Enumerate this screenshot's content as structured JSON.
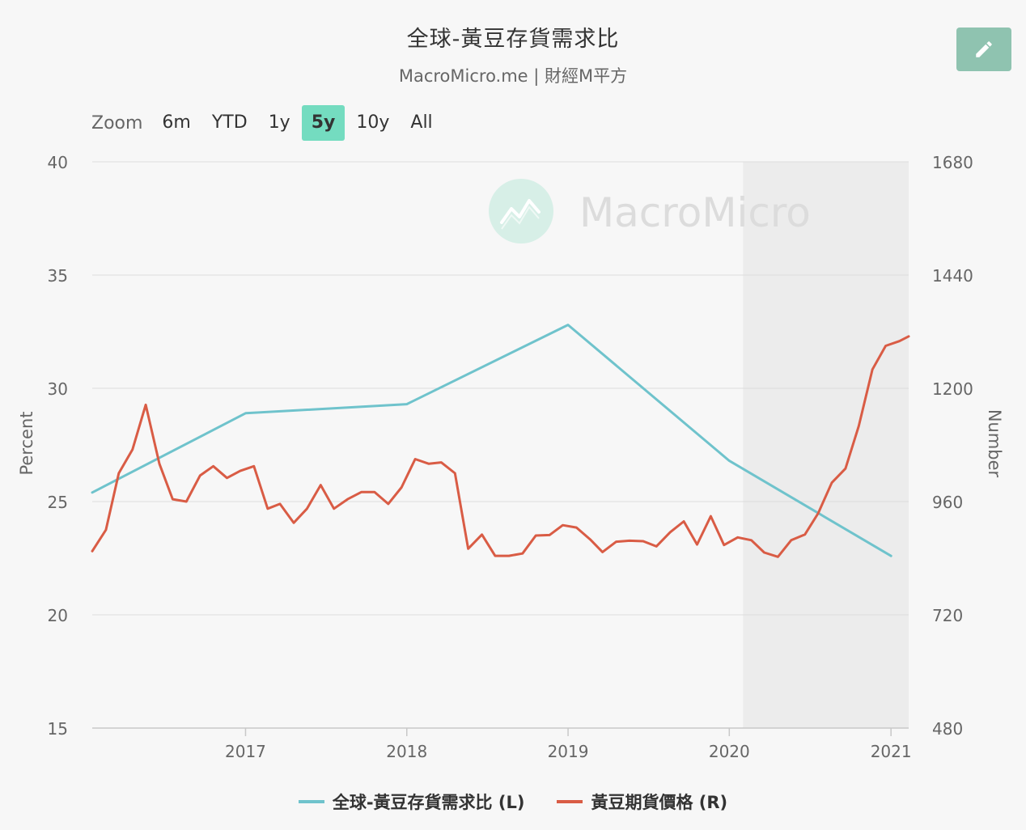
{
  "header": {
    "title": "全球-黃豆存貨需求比",
    "subtitle": "MacroMicro.me | 財經M平方"
  },
  "toolbar": {
    "edit_icon": "pencil-icon"
  },
  "zoom": {
    "label": "Zoom",
    "options": [
      "6m",
      "YTD",
      "1y",
      "5y",
      "10y",
      "All"
    ],
    "active": "5y"
  },
  "watermark": "MacroMicro",
  "colors": {
    "accent": "#74dcc0",
    "series_left": "#6fc3cc",
    "series_right": "#d95c45",
    "shade": "#ececec"
  },
  "chart_data": {
    "type": "line",
    "xlabel": "",
    "x_range": [
      "2016-01-20",
      "2021-02-10"
    ],
    "x_ticks": [
      "2017",
      "2018",
      "2019",
      "2020",
      "2021"
    ],
    "shaded_region": [
      "2020-02-01",
      "2021-02-10"
    ],
    "y_left": {
      "label": "Percent",
      "ylim": [
        15,
        40
      ],
      "ticks": [
        15,
        20,
        25,
        30,
        35,
        40
      ]
    },
    "y_right": {
      "label": "Number",
      "ylim": [
        480,
        1680
      ],
      "ticks": [
        480,
        720,
        960,
        1200,
        1440,
        1680
      ]
    },
    "grid": true,
    "legend_position": "bottom",
    "series": [
      {
        "name": "全球-黃豆存貨需求比 (L)",
        "axis": "left",
        "color": "#6fc3cc",
        "points": [
          [
            "2016-01-20",
            25.4
          ],
          [
            "2017-01-01",
            28.9
          ],
          [
            "2018-01-01",
            29.3
          ],
          [
            "2019-01-01",
            32.8
          ],
          [
            "2020-01-01",
            26.8
          ],
          [
            "2021-01-01",
            22.6
          ]
        ]
      },
      {
        "name": "黃豆期貨價格 (R)",
        "axis": "right",
        "color": "#d95c45",
        "points": [
          [
            "2016-01-20",
            855
          ],
          [
            "2016-02-20",
            900
          ],
          [
            "2016-03-20",
            1020
          ],
          [
            "2016-04-20",
            1070
          ],
          [
            "2016-05-20",
            1165
          ],
          [
            "2016-06-20",
            1040
          ],
          [
            "2016-07-20",
            965
          ],
          [
            "2016-08-20",
            960
          ],
          [
            "2016-09-20",
            1015
          ],
          [
            "2016-10-20",
            1035
          ],
          [
            "2016-11-20",
            1010
          ],
          [
            "2016-12-20",
            1025
          ],
          [
            "2017-01-20",
            1035
          ],
          [
            "2017-02-20",
            945
          ],
          [
            "2017-03-20",
            955
          ],
          [
            "2017-04-20",
            915
          ],
          [
            "2017-05-20",
            945
          ],
          [
            "2017-06-20",
            995
          ],
          [
            "2017-07-20",
            945
          ],
          [
            "2017-08-20",
            965
          ],
          [
            "2017-09-20",
            980
          ],
          [
            "2017-10-20",
            980
          ],
          [
            "2017-11-20",
            955
          ],
          [
            "2017-12-20",
            990
          ],
          [
            "2018-01-20",
            1050
          ],
          [
            "2018-02-20",
            1040
          ],
          [
            "2018-03-20",
            1043
          ],
          [
            "2018-04-20",
            1020
          ],
          [
            "2018-05-20",
            860
          ],
          [
            "2018-06-20",
            890
          ],
          [
            "2018-07-20",
            845
          ],
          [
            "2018-08-20",
            845
          ],
          [
            "2018-09-20",
            850
          ],
          [
            "2018-10-20",
            888
          ],
          [
            "2018-11-20",
            889
          ],
          [
            "2018-12-20",
            910
          ],
          [
            "2019-01-20",
            905
          ],
          [
            "2019-02-20",
            880
          ],
          [
            "2019-03-20",
            853
          ],
          [
            "2019-04-20",
            875
          ],
          [
            "2019-05-20",
            877
          ],
          [
            "2019-06-20",
            876
          ],
          [
            "2019-07-20",
            865
          ],
          [
            "2019-08-20",
            895
          ],
          [
            "2019-09-20",
            918
          ],
          [
            "2019-10-20",
            869
          ],
          [
            "2019-11-20",
            929
          ],
          [
            "2019-12-20",
            868
          ],
          [
            "2020-01-20",
            884
          ],
          [
            "2020-02-20",
            878
          ],
          [
            "2020-03-20",
            852
          ],
          [
            "2020-04-20",
            843
          ],
          [
            "2020-05-20",
            878
          ],
          [
            "2020-06-20",
            890
          ],
          [
            "2020-07-20",
            935
          ],
          [
            "2020-08-20",
            1000
          ],
          [
            "2020-09-20",
            1030
          ],
          [
            "2020-10-20",
            1120
          ],
          [
            "2020-11-20",
            1240
          ],
          [
            "2020-12-20",
            1290
          ],
          [
            "2021-01-20",
            1300
          ],
          [
            "2021-02-10",
            1310
          ]
        ]
      }
    ]
  }
}
